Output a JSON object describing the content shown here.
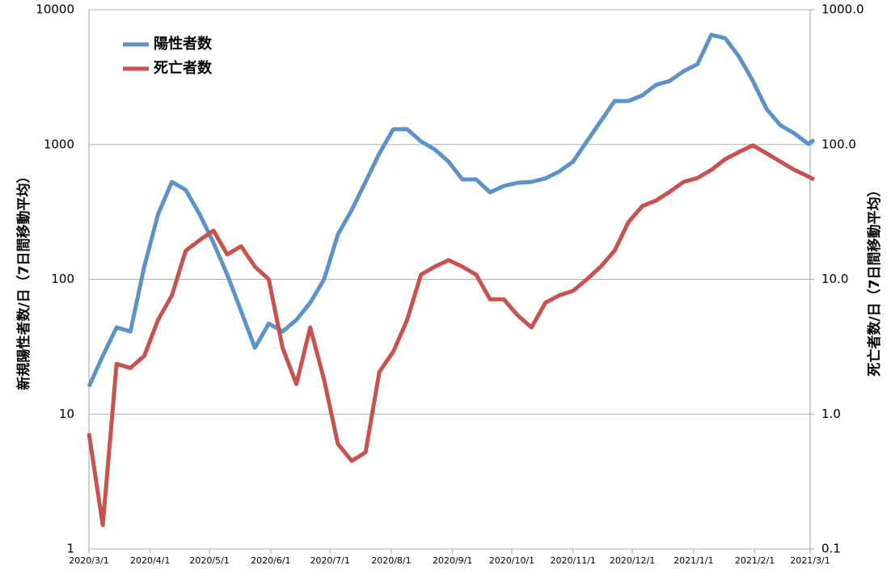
{
  "chart_data": {
    "type": "line",
    "ylabel": "新規陽性者数/日（7日間移動平均）",
    "y2label": "死亡者数/日（7日間移動平均）",
    "log_scale": true,
    "grid": true,
    "legend": "upper left",
    "x": [
      "2020/3/1",
      "2020/3/8",
      "2020/3/15",
      "2020/3/22",
      "2020/3/29",
      "2020/4/5",
      "2020/4/12",
      "2020/4/19",
      "2020/4/26",
      "2020/5/3",
      "2020/5/10",
      "2020/5/17",
      "2020/5/24",
      "2020/5/31",
      "2020/6/7",
      "2020/6/14",
      "2020/6/21",
      "2020/6/28",
      "2020/7/5",
      "2020/7/12",
      "2020/7/19",
      "2020/7/26",
      "2020/8/2",
      "2020/8/9",
      "2020/8/16",
      "2020/8/23",
      "2020/8/30",
      "2020/9/6",
      "2020/9/13",
      "2020/9/20",
      "2020/9/27",
      "2020/10/4",
      "2020/10/11",
      "2020/10/18",
      "2020/10/25",
      "2020/11/1",
      "2020/11/8",
      "2020/11/15",
      "2020/11/22",
      "2020/11/29",
      "2020/12/6",
      "2020/12/13",
      "2020/12/20",
      "2020/12/27",
      "2021/1/3",
      "2021/1/10",
      "2021/1/17",
      "2021/1/24",
      "2021/1/31",
      "2021/2/7",
      "2021/2/14",
      "2021/2/21",
      "2021/2/28",
      "2021/3/3"
    ],
    "xlim": [
      "2020/3/1",
      "2021/3/1"
    ],
    "xticks": [
      "2020/3/1",
      "2020/4/1",
      "2020/5/1",
      "2020/6/1",
      "2020/7/1",
      "2020/8/1",
      "2020/9/1",
      "2020/10/1",
      "2020/11/1",
      "2020/12/1",
      "2021/1/1",
      "2021/2/1",
      "2021/3/1"
    ],
    "ylim": [
      1,
      10000
    ],
    "yticks": [
      1,
      10,
      100,
      1000,
      10000
    ],
    "y2lim": [
      0.1,
      1000
    ],
    "y2ticks": [
      0.1,
      {
        "value": 1,
        "label": "1.0"
      },
      {
        "value": 10,
        "label": "10.0"
      },
      {
        "value": 100,
        "label": "100.0"
      },
      {
        "value": 1000,
        "label": "1000.0"
      }
    ],
    "series": [
      {
        "name": "陽性者数",
        "color": "#5b93c8",
        "values": [
          16,
          27,
          44,
          41,
          124,
          304,
          528,
          460,
          304,
          187,
          108,
          58,
          31,
          47,
          41,
          50,
          67,
          100,
          215,
          326,
          528,
          857,
          1297,
          1300,
          1054,
          918,
          746,
          550,
          550,
          441,
          493,
          520,
          528,
          560,
          630,
          746,
          1054,
          1489,
          2100,
          2100,
          2313,
          2768,
          2966,
          3500,
          3950,
          6520,
          6150,
          4490,
          2966,
          1830,
          1388,
          1209,
          1010,
          1080
        ]
      },
      {
        "name": "死亡者数",
        "color": "#c9524f",
        "axis": "y2",
        "values": [
          0.72,
          0.15,
          2.36,
          2.2,
          2.7,
          5.0,
          7.6,
          16.3,
          19.5,
          23,
          15.3,
          17.6,
          12.4,
          10,
          3.1,
          1.67,
          4.4,
          1.8,
          0.6,
          0.45,
          0.52,
          2.06,
          2.9,
          5.0,
          10.8,
          12.4,
          13.9,
          12.4,
          10.8,
          7.1,
          7.1,
          5.4,
          4.4,
          6.7,
          7.6,
          8.2,
          10,
          12.4,
          16.3,
          26.5,
          34.9,
          38.4,
          44.7,
          52.8,
          56.5,
          64.9,
          77.8,
          88,
          98.5,
          86,
          74.6,
          64.9,
          58,
          54.9
        ]
      }
    ]
  }
}
